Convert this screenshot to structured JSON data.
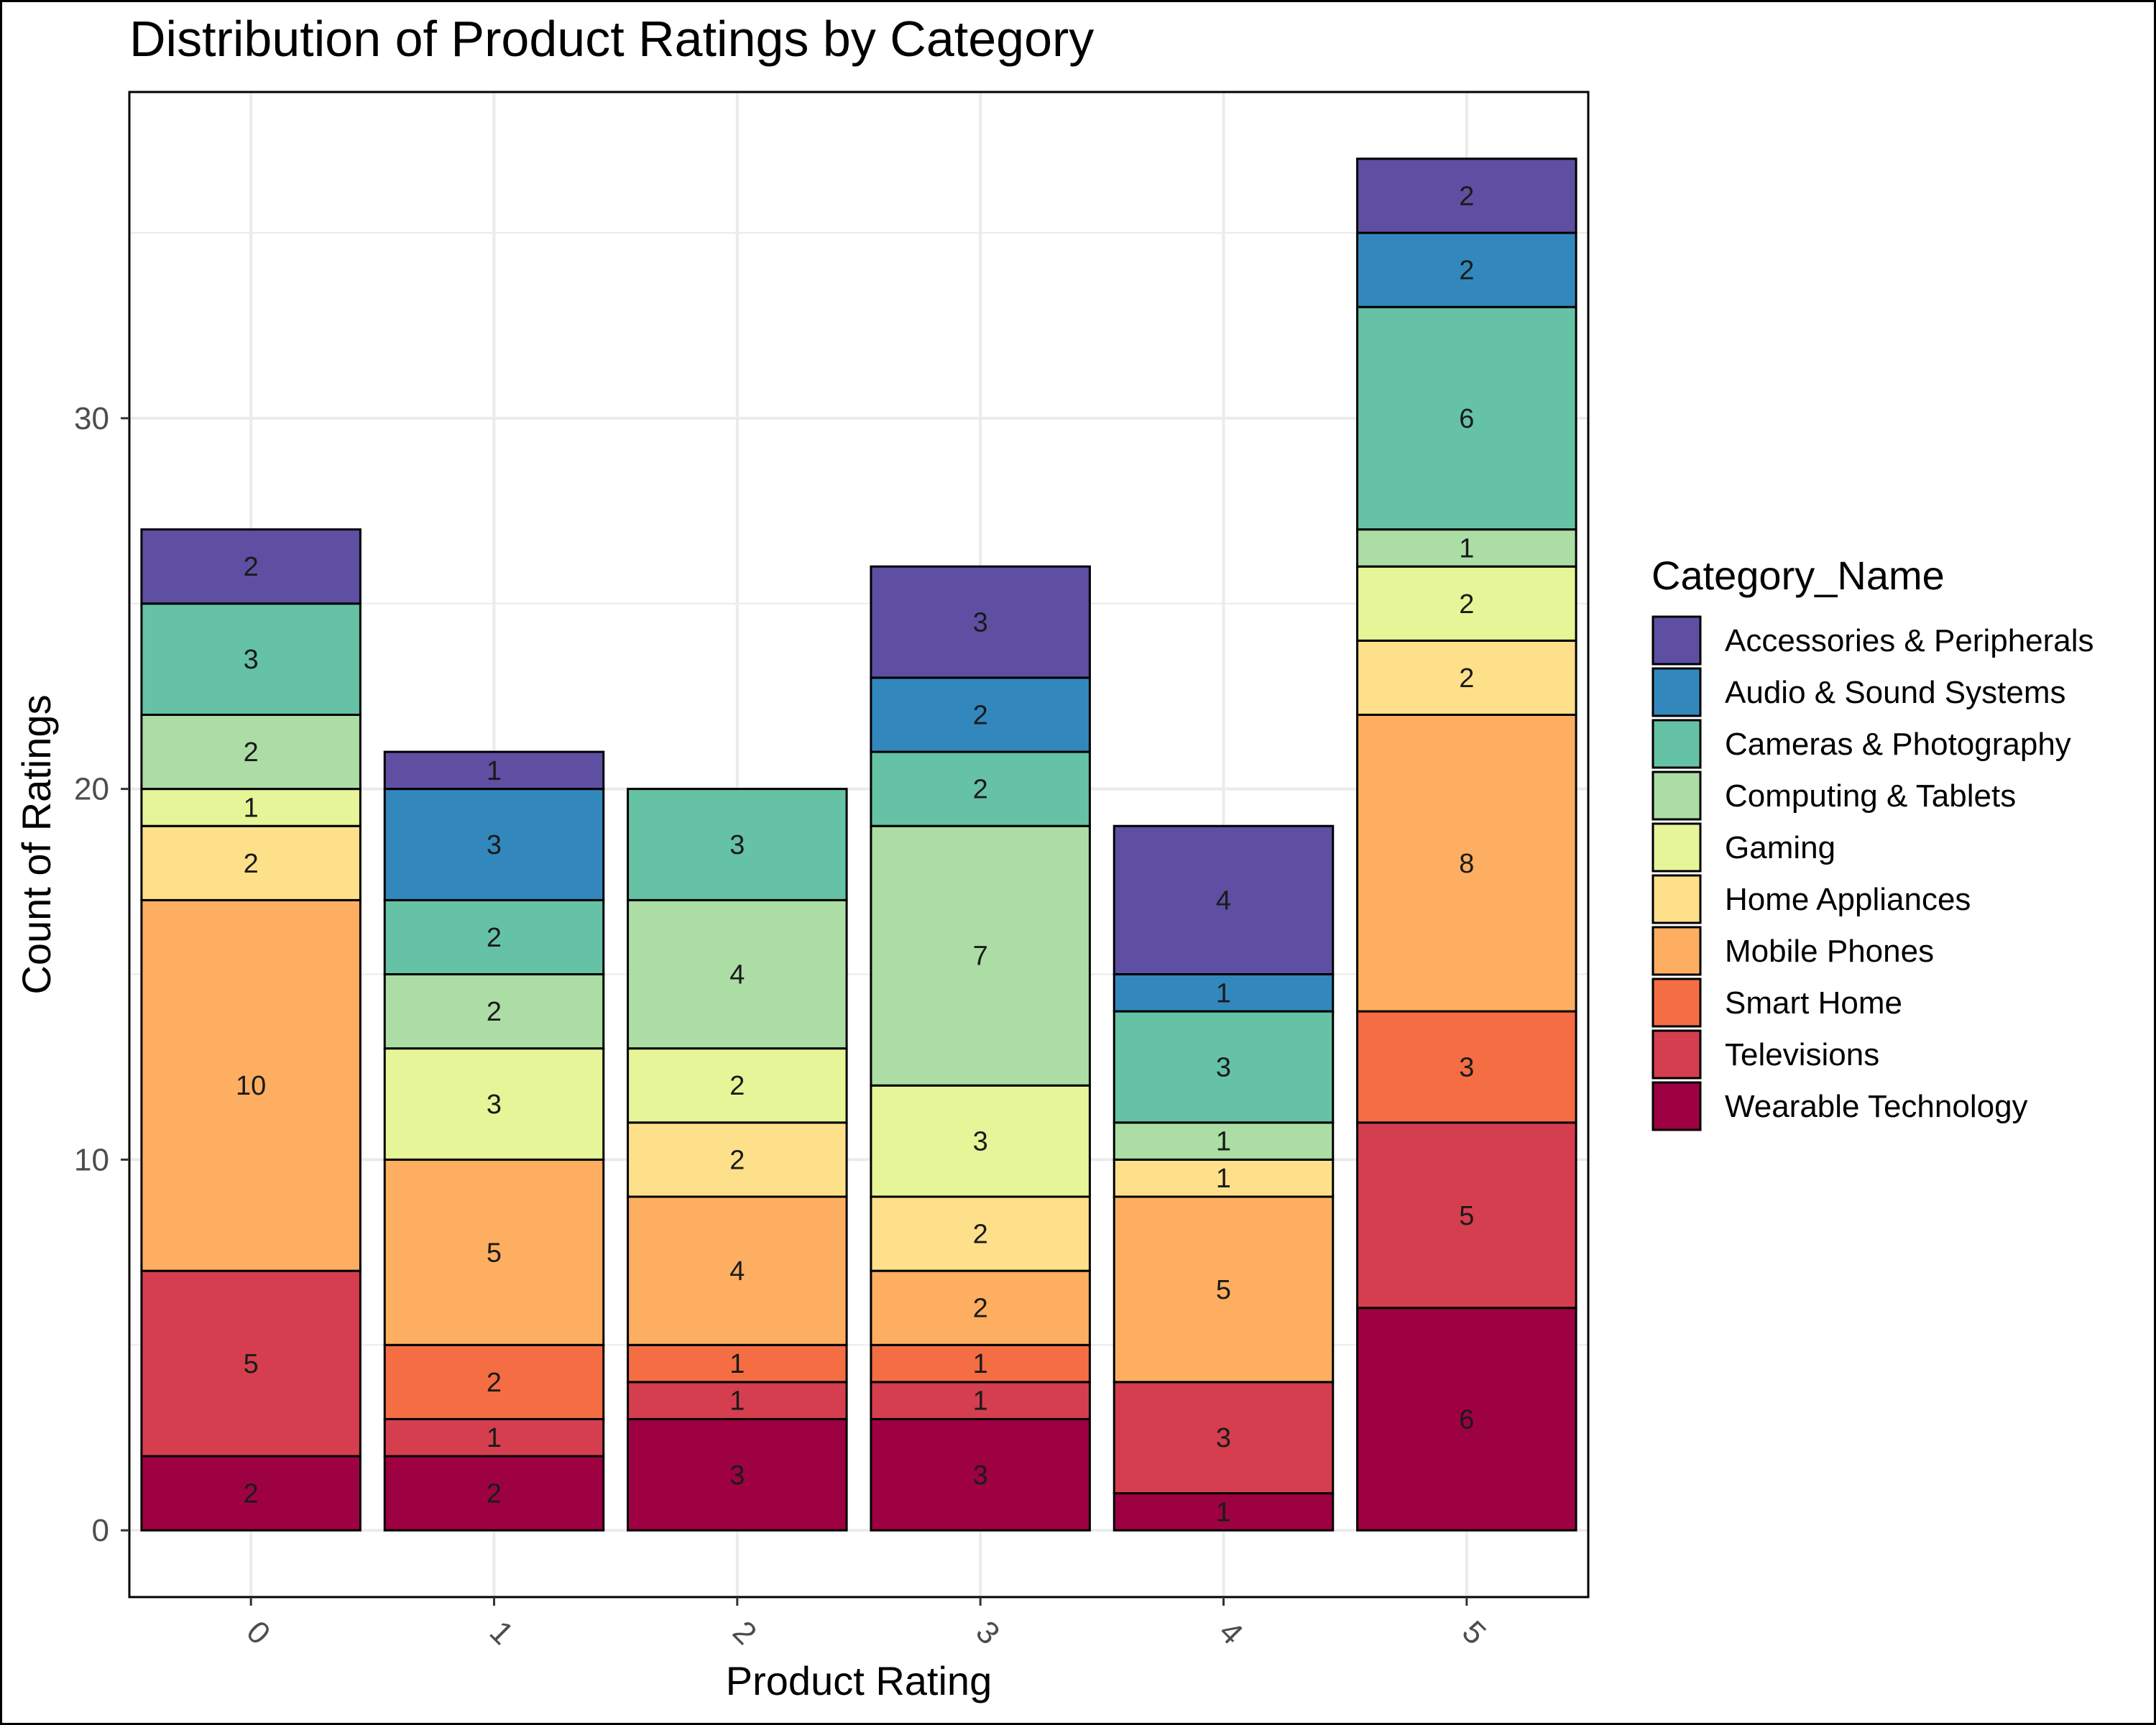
{
  "chart_data": {
    "type": "bar",
    "stacked": true,
    "title": "Distribution of Product Ratings by Category",
    "xlabel": "Product Rating",
    "ylabel": "Count of Ratings",
    "categories": [
      "0",
      "1",
      "2",
      "3",
      "4",
      "5"
    ],
    "yticks": [
      0,
      10,
      20,
      30
    ],
    "ylim": [
      -1.8,
      38.8
    ],
    "grid": true,
    "legend": {
      "title": "Category_Name",
      "position": "right"
    },
    "series": [
      {
        "name": "Accessories & Peripherals",
        "color": "#5e4fa2",
        "values": [
          2,
          1,
          0,
          3,
          4,
          2
        ]
      },
      {
        "name": "Audio & Sound Systems",
        "color": "#3288bd",
        "values": [
          0,
          3,
          0,
          2,
          1,
          2
        ]
      },
      {
        "name": "Cameras & Photography",
        "color": "#66c2a5",
        "values": [
          3,
          2,
          3,
          2,
          3,
          6
        ]
      },
      {
        "name": "Computing & Tablets",
        "color": "#abdda4",
        "values": [
          2,
          2,
          4,
          7,
          1,
          1
        ]
      },
      {
        "name": "Gaming",
        "color": "#e6f598",
        "values": [
          1,
          3,
          2,
          3,
          0,
          2
        ]
      },
      {
        "name": "Home Appliances",
        "color": "#fee08b",
        "values": [
          2,
          0,
          2,
          2,
          1,
          2
        ]
      },
      {
        "name": "Mobile Phones",
        "color": "#fdae61",
        "values": [
          10,
          5,
          4,
          2,
          5,
          8
        ]
      },
      {
        "name": "Smart Home",
        "color": "#f46d43",
        "values": [
          0,
          2,
          1,
          1,
          0,
          3
        ]
      },
      {
        "name": "Televisions",
        "color": "#d53e4f",
        "values": [
          5,
          1,
          1,
          1,
          3,
          5
        ]
      },
      {
        "name": "Wearable Technology",
        "color": "#9e0142",
        "values": [
          2,
          2,
          3,
          3,
          1,
          6
        ]
      }
    ]
  }
}
